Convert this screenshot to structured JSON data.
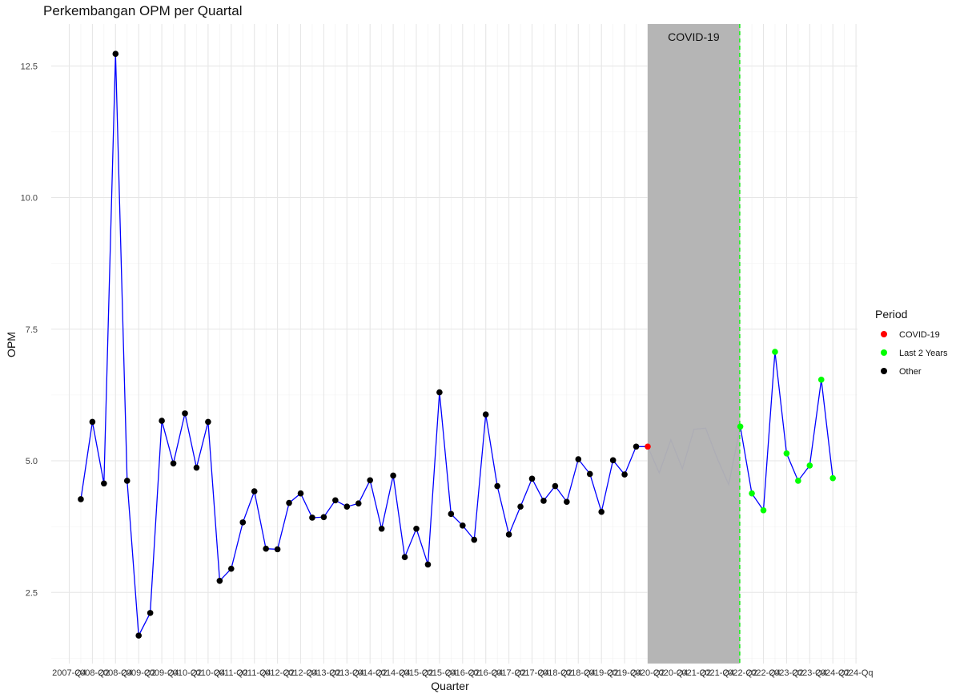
{
  "chart_data": {
    "type": "line",
    "title": "Perkembangan OPM per Quartal",
    "xlabel": "Quarter",
    "ylabel": "OPM",
    "ylim": [
      1.2,
      13.3
    ],
    "yticks": [
      "2.5",
      "5.0",
      "7.5",
      "10.0",
      "12.5"
    ],
    "grid": true,
    "legend_position": "right",
    "legend": {
      "title": "Period",
      "entries": [
        {
          "label": "COVID-19",
          "color": "#ff0000"
        },
        {
          "label": "Last 2 Years",
          "color": "#00ff00"
        },
        {
          "label": "Other",
          "color": "#000000"
        }
      ]
    },
    "line_color": "#0000ff",
    "covid_shade": {
      "label": "COVID-19",
      "color": "#b3b3b3",
      "start_index": 50,
      "end_index": 57.95
    },
    "vline_index": 57.95,
    "vline_color": "#00ff00",
    "x_tick_labels": [
      "2007-Q4",
      "2008-Q2",
      "2008-Q4",
      "2009-Q2",
      "2009-Q4",
      "2010-Q2",
      "2010-Q4",
      "2011-Q2",
      "2011-Q4",
      "2012-Q2",
      "2012-Q4",
      "2013-Q2",
      "2013-Q4",
      "2014-Q2",
      "2014-Q4",
      "2015-Q2",
      "2015-Q4",
      "2016-Q2",
      "2016-Q4",
      "2017-Q2",
      "2017-Q4",
      "2018-Q2",
      "2018-Q4",
      "2019-Q2",
      "2019-Q4",
      "2020-Q2",
      "2020-Q4",
      "2021-Q2",
      "2021-Q4",
      "2022-Q2",
      "2022-Q4",
      "2023-Q2",
      "2023-Q4",
      "2024-Q2",
      "2024-Qq"
    ],
    "series": [
      {
        "name": "OPM",
        "values": [
          {
            "i": 1,
            "y": 4.27,
            "period": "Other"
          },
          {
            "i": 2,
            "y": 5.74,
            "period": "Other"
          },
          {
            "i": 3,
            "y": 4.57,
            "period": "Other"
          },
          {
            "i": 4,
            "y": 12.73,
            "period": "Other"
          },
          {
            "i": 5,
            "y": 4.62,
            "period": "Other"
          },
          {
            "i": 6,
            "y": 1.68,
            "period": "Other"
          },
          {
            "i": 7,
            "y": 2.11,
            "period": "Other"
          },
          {
            "i": 8,
            "y": 5.76,
            "period": "Other"
          },
          {
            "i": 9,
            "y": 4.95,
            "period": "Other"
          },
          {
            "i": 10,
            "y": 5.9,
            "period": "Other"
          },
          {
            "i": 11,
            "y": 4.87,
            "period": "Other"
          },
          {
            "i": 12,
            "y": 5.74,
            "period": "Other"
          },
          {
            "i": 13,
            "y": 2.72,
            "period": "Other"
          },
          {
            "i": 14,
            "y": 2.95,
            "period": "Other"
          },
          {
            "i": 15,
            "y": 3.83,
            "period": "Other"
          },
          {
            "i": 16,
            "y": 4.42,
            "period": "Other"
          },
          {
            "i": 17,
            "y": 3.33,
            "period": "Other"
          },
          {
            "i": 18,
            "y": 3.32,
            "period": "Other"
          },
          {
            "i": 19,
            "y": 4.2,
            "period": "Other"
          },
          {
            "i": 20,
            "y": 4.38,
            "period": "Other"
          },
          {
            "i": 21,
            "y": 3.92,
            "period": "Other"
          },
          {
            "i": 22,
            "y": 3.93,
            "period": "Other"
          },
          {
            "i": 23,
            "y": 4.25,
            "period": "Other"
          },
          {
            "i": 24,
            "y": 4.13,
            "period": "Other"
          },
          {
            "i": 25,
            "y": 4.19,
            "period": "Other"
          },
          {
            "i": 26,
            "y": 4.63,
            "period": "Other"
          },
          {
            "i": 27,
            "y": 3.71,
            "period": "Other"
          },
          {
            "i": 28,
            "y": 4.72,
            "period": "Other"
          },
          {
            "i": 29,
            "y": 3.17,
            "period": "Other"
          },
          {
            "i": 30,
            "y": 3.71,
            "period": "Other"
          },
          {
            "i": 31,
            "y": 3.03,
            "period": "Other"
          },
          {
            "i": 32,
            "y": 6.3,
            "period": "Other"
          },
          {
            "i": 33,
            "y": 3.99,
            "period": "Other"
          },
          {
            "i": 34,
            "y": 3.77,
            "period": "Other"
          },
          {
            "i": 35,
            "y": 3.5,
            "period": "Other"
          },
          {
            "i": 36,
            "y": 5.88,
            "period": "Other"
          },
          {
            "i": 37,
            "y": 4.52,
            "period": "Other"
          },
          {
            "i": 38,
            "y": 3.6,
            "period": "Other"
          },
          {
            "i": 39,
            "y": 4.13,
            "period": "Other"
          },
          {
            "i": 40,
            "y": 4.66,
            "period": "Other"
          },
          {
            "i": 41,
            "y": 4.24,
            "period": "Other"
          },
          {
            "i": 42,
            "y": 4.52,
            "period": "Other"
          },
          {
            "i": 43,
            "y": 4.22,
            "period": "Other"
          },
          {
            "i": 44,
            "y": 5.03,
            "period": "Other"
          },
          {
            "i": 45,
            "y": 4.75,
            "period": "Other"
          },
          {
            "i": 46,
            "y": 4.03,
            "period": "Other"
          },
          {
            "i": 47,
            "y": 5.01,
            "period": "Other"
          },
          {
            "i": 48,
            "y": 4.74,
            "period": "Other"
          },
          {
            "i": 49,
            "y": 5.27,
            "period": "Other"
          },
          {
            "i": 50,
            "y": 5.27,
            "period": "COVID-19"
          },
          {
            "i": 51,
            "y": 4.77,
            "period": "COVID-19"
          },
          {
            "i": 52,
            "y": 5.4,
            "period": "COVID-19"
          },
          {
            "i": 53,
            "y": 4.85,
            "period": "COVID-19"
          },
          {
            "i": 54,
            "y": 5.6,
            "period": "COVID-19"
          },
          {
            "i": 55,
            "y": 5.62,
            "period": "COVID-19"
          },
          {
            "i": 56,
            "y": 5.05,
            "period": "COVID-19"
          },
          {
            "i": 57,
            "y": 4.55,
            "period": "COVID-19"
          },
          {
            "i": 58,
            "y": 5.65,
            "period": "Last 2 Years"
          },
          {
            "i": 59,
            "y": 4.38,
            "period": "Last 2 Years"
          },
          {
            "i": 60,
            "y": 4.06,
            "period": "Last 2 Years"
          },
          {
            "i": 61,
            "y": 7.07,
            "period": "Last 2 Years"
          },
          {
            "i": 62,
            "y": 5.14,
            "period": "Last 2 Years"
          },
          {
            "i": 63,
            "y": 4.62,
            "period": "Last 2 Years"
          },
          {
            "i": 64,
            "y": 4.91,
            "period": "Last 2 Years"
          },
          {
            "i": 65,
            "y": 6.54,
            "period": "Last 2 Years"
          },
          {
            "i": 66,
            "y": 4.67,
            "period": "Last 2 Years"
          }
        ]
      }
    ]
  }
}
